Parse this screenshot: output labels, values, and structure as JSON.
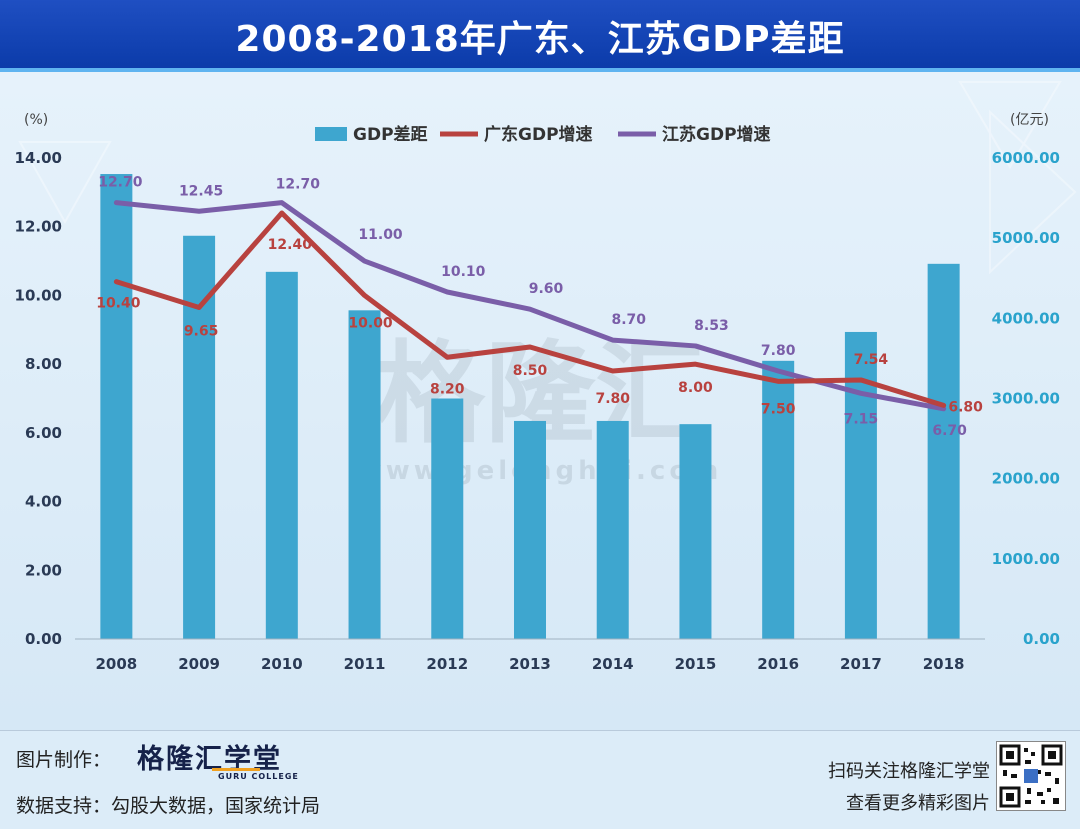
{
  "header": {
    "title": "2008-2018年广东、江苏GDP差距"
  },
  "chart_data": {
    "type": "bar",
    "categories": [
      "2008",
      "2009",
      "2010",
      "2011",
      "2012",
      "2013",
      "2014",
      "2015",
      "2016",
      "2017",
      "2018"
    ],
    "series": [
      {
        "name": "GDP差距",
        "type": "bar",
        "axis": "right",
        "values": [
          5800,
          5030,
          4580,
          4100,
          3000,
          2720,
          2720,
          2680,
          3470,
          3830,
          4680
        ]
      },
      {
        "name": "广东GDP增速",
        "type": "line",
        "axis": "left",
        "values": [
          10.4,
          9.65,
          12.4,
          10.0,
          8.2,
          8.5,
          7.8,
          8.0,
          7.5,
          7.54,
          6.8
        ],
        "labels": [
          "10.40",
          "9.65",
          "12.40",
          "10.00",
          "8.20",
          "8.50",
          "7.80",
          "8.00",
          "7.50",
          "7.54",
          "6.80"
        ]
      },
      {
        "name": "江苏GDP增速",
        "type": "line",
        "axis": "left",
        "values": [
          12.7,
          12.45,
          12.7,
          11.0,
          10.1,
          9.6,
          8.7,
          8.53,
          7.8,
          7.15,
          6.7
        ],
        "labels": [
          "12.70",
          "12.45",
          "12.70",
          "11.00",
          "10.10",
          "9.60",
          "8.70",
          "8.53",
          "7.80",
          "7.15",
          "6.70"
        ]
      }
    ],
    "y_left": {
      "unit": "(%)",
      "min": 0,
      "max": 14,
      "ticks": [
        "0.00",
        "2.00",
        "4.00",
        "6.00",
        "8.00",
        "10.00",
        "12.00",
        "14.00"
      ]
    },
    "y_right": {
      "unit": "(亿元)",
      "min": 0,
      "max": 6000,
      "ticks": [
        "0.00",
        "1000.00",
        "2000.00",
        "3000.00",
        "4000.00",
        "5000.00",
        "6000.00"
      ]
    },
    "legend_position": "top-center",
    "grid": false,
    "colors": {
      "bar": "#3ea6cf",
      "guangdong": "#b8423f",
      "jiangsu": "#7a5ea8",
      "right_axis_text": "#2aa3cc"
    }
  },
  "watermark": {
    "text": "格隆汇",
    "url": "www.gelonghui.com"
  },
  "footer": {
    "maker_label": "图片制作：",
    "brand": "格隆汇学堂",
    "brand_sub": "GURU COLLEGE",
    "source_label": "数据支持：勾股大数据，国家统计局",
    "scan_text": "扫码关注格隆汇学堂",
    "more_text": "查看更多精彩图片"
  }
}
